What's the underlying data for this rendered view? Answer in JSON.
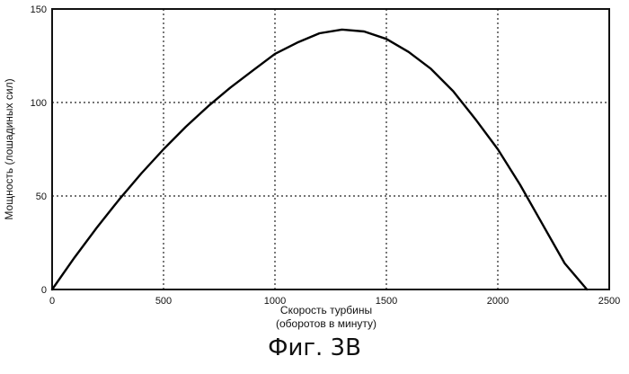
{
  "figure": {
    "caption": "Фиг. 3B"
  },
  "chart_data": {
    "type": "line",
    "xlabel_line1": "Скорость турбины",
    "xlabel_line2": "(оборотов в минуту)",
    "ylabel": "Мощность (лошадиных сил)",
    "xlim": [
      0,
      2500
    ],
    "ylim": [
      0,
      150
    ],
    "x_ticks": [
      "0",
      "500",
      "1000",
      "1500",
      "2000",
      "2500"
    ],
    "y_ticks": [
      "0",
      "50",
      "100",
      "150"
    ],
    "grid": true,
    "series": [
      {
        "color": "#000000",
        "x": [
          0,
          100,
          200,
          300,
          400,
          500,
          600,
          700,
          800,
          900,
          1000,
          1100,
          1200,
          1300,
          1400,
          1500,
          1600,
          1700,
          1800,
          1900,
          2000,
          2100,
          2200,
          2300,
          2400
        ],
        "y": [
          0,
          17,
          33,
          48,
          62,
          75,
          87,
          98,
          108,
          117,
          126,
          132,
          137,
          139,
          138,
          134,
          127,
          118,
          106,
          91,
          75,
          56,
          35,
          14,
          0
        ]
      }
    ]
  }
}
